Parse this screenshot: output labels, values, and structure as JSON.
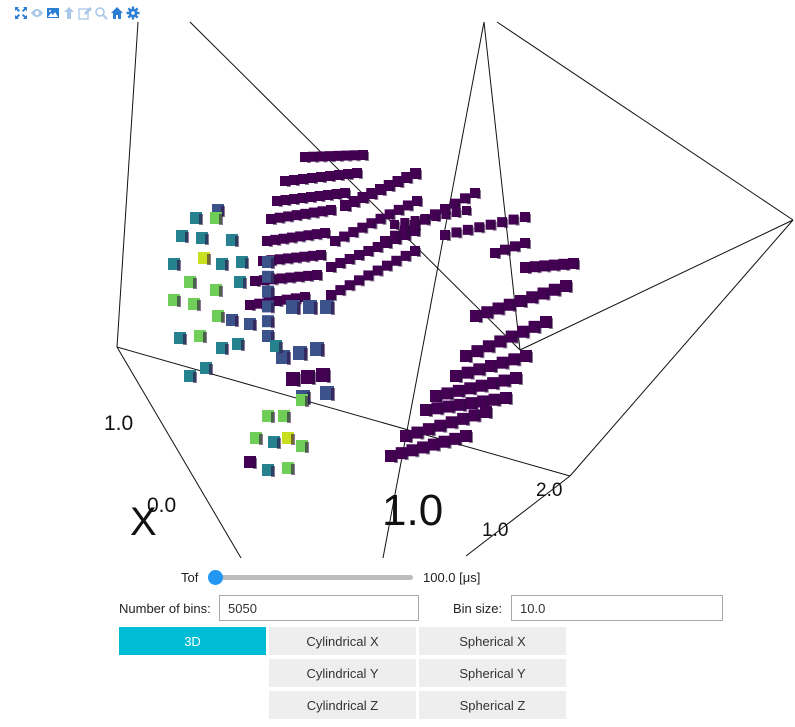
{
  "toolbar": {
    "buttons": [
      {
        "icon": "fullscreen-icon"
      },
      {
        "icon": "eye-icon"
      },
      {
        "icon": "image-icon"
      },
      {
        "icon": "arrow-up-icon"
      },
      {
        "icon": "edit-icon"
      },
      {
        "icon": "zoom-icon"
      },
      {
        "icon": "home-icon"
      },
      {
        "icon": "gear-icon"
      }
    ]
  },
  "scene": {
    "axis_labels": {
      "left_tick_1": "1.0",
      "left_tick_0": "0.0",
      "x_axis": "X",
      "center_tick": "1.0",
      "right_tick_2": "2.0",
      "right_tick_1": "1.0"
    },
    "colors": {
      "dark": "#440154",
      "teal": "#26828e",
      "green": "#35b779",
      "lime": "#6ece58",
      "yellow": "#c8e020",
      "bluish": "#3b528b"
    }
  },
  "controls": {
    "tof": {
      "label": "Tof",
      "value_text": "100.0 [μs]",
      "fraction": 0.0
    },
    "bins": {
      "label": "Number of bins:",
      "value": "5050"
    },
    "bin_size": {
      "label": "Bin size:",
      "value": "10.0"
    },
    "view_buttons": [
      {
        "label": "3D",
        "active": true
      },
      {
        "label": "Cylindrical X",
        "active": false
      },
      {
        "label": "Spherical X",
        "active": false
      },
      {
        "label": "Cylindrical Y",
        "active": false
      },
      {
        "label": "Spherical Y",
        "active": false
      },
      {
        "label": "Cylindrical Z",
        "active": false
      },
      {
        "label": "Spherical Z",
        "active": false
      }
    ]
  }
}
